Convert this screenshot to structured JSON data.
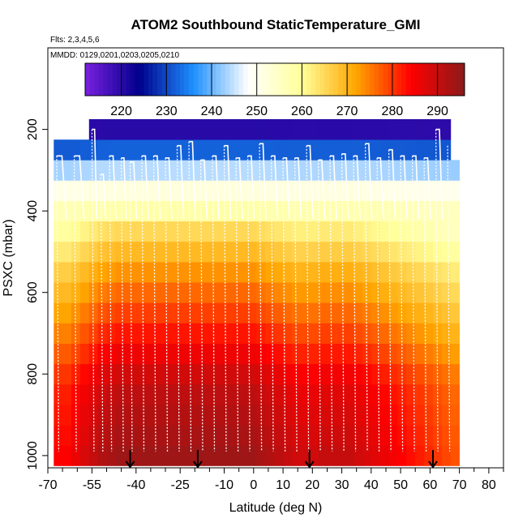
{
  "chart_data": {
    "type": "heatmap",
    "title": "ATOM2 Southbound StaticTemperature_GMI",
    "flights_note": "Flts: 2,3,4,5,6",
    "dates_note": "MMDD: 0129,0201,0203,0205,0210",
    "xlabel": "Latitude (deg N)",
    "ylabel": "PSXC (mbar)",
    "xlim": [
      -70,
      85
    ],
    "ylim": [
      1030,
      0
    ],
    "x_major_ticks": [
      -70,
      -55,
      -40,
      -25,
      -10,
      0,
      10,
      20,
      30,
      40,
      50,
      60,
      70,
      80
    ],
    "x_tick_labels": [
      "-70",
      "-55",
      "-40",
      "-25",
      "-10",
      "0",
      "10",
      "20",
      "30",
      "40",
      "50",
      "60",
      "70",
      "80"
    ],
    "y_ticks": [
      200,
      400,
      600,
      800,
      1000
    ],
    "y_tick_labels": [
      "200",
      "400",
      "600",
      "800",
      "1000"
    ],
    "colorbar": {
      "min": 212,
      "max": 296,
      "ticks": [
        220,
        230,
        240,
        250,
        260,
        270,
        280,
        290
      ],
      "tick_labels": [
        "220",
        "230",
        "240",
        "250",
        "260",
        "270",
        "280",
        "290"
      ],
      "palette": [
        "#7a1fe0",
        "#00008b",
        "#1e90ff",
        "#ffffff",
        "#ffff99",
        "#ffa500",
        "#ff0000",
        "#8b1a1a"
      ]
    },
    "lat_edges": [
      -68,
      -65,
      -62,
      -59,
      -56,
      -53,
      -50,
      -47,
      -44,
      -41,
      -38,
      -35,
      -32,
      -29,
      -26,
      -23,
      -20,
      -17,
      -14,
      -11,
      -8,
      -5,
      -2,
      1,
      4,
      7,
      10,
      13,
      16,
      19,
      22,
      25,
      28,
      31,
      34,
      37,
      40,
      43,
      46,
      49,
      52,
      55,
      58,
      61,
      64,
      67,
      70
    ],
    "pressure_levels": [
      1000,
      950,
      900,
      850,
      800,
      750,
      700,
      650,
      600,
      550,
      500,
      450,
      400,
      350,
      300,
      250,
      200
    ],
    "temperature_profile_K": [
      292,
      291,
      290,
      289,
      287,
      284,
      281,
      278,
      275,
      272,
      268,
      264,
      258,
      252,
      244,
      232,
      220
    ],
    "latitude_anomaly_K": [
      -8,
      -8,
      -6,
      -4,
      -2,
      0,
      1,
      2,
      2,
      2,
      2,
      2,
      2,
      2,
      2,
      2,
      2,
      2,
      2,
      2,
      2,
      2,
      2,
      1,
      0,
      -1,
      -2,
      -3,
      -3,
      -3,
      -2,
      -2,
      -2,
      -2,
      -3,
      -4,
      -5,
      -6,
      -7,
      -8,
      -9,
      -10,
      -11,
      -12,
      -13,
      -14
    ],
    "data_lat_range": [
      -68,
      70
    ],
    "flight_tops_mbar": [
      260,
      195,
      310,
      265,
      265,
      275,
      260,
      265,
      270,
      240,
      230,
      275,
      240,
      265,
      265,
      240,
      235,
      270,
      265,
      265,
      230
    ],
    "flight_track_latitudes": [
      -67,
      -61,
      -55,
      -52,
      -49,
      -45,
      -42,
      -38,
      -34,
      -30,
      -26,
      -22,
      -18,
      -14,
      -10,
      -6,
      -2,
      2,
      6,
      10,
      14,
      18,
      22,
      26,
      30,
      34,
      38,
      42,
      46,
      50,
      54,
      58,
      62,
      66
    ],
    "flight_track_top_mbar": [
      265,
      265,
      200,
      310,
      265,
      270,
      280,
      265,
      265,
      270,
      240,
      230,
      275,
      265,
      240,
      270,
      265,
      235,
      265,
      270,
      270,
      240,
      275,
      265,
      260,
      265,
      235,
      270,
      250,
      265,
      265,
      270,
      200,
      240
    ],
    "arrow_latitudes": [
      -42,
      -19,
      19,
      61
    ]
  }
}
